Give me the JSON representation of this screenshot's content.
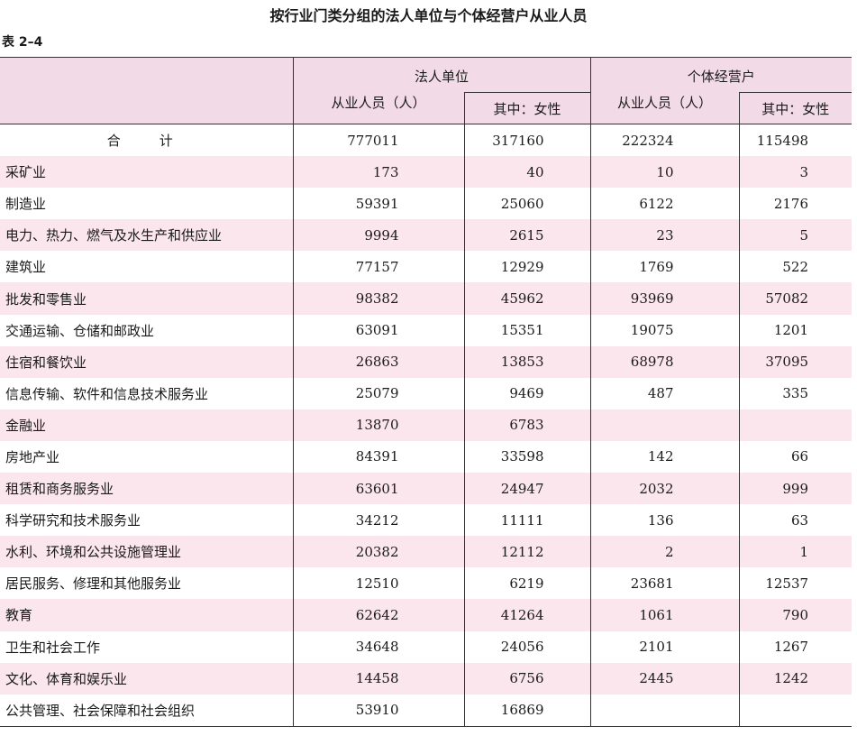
{
  "title": "按行业门类分组的法人单位与个体经营户从业人员",
  "table_label": "表 2–4",
  "header": {
    "group1": "法人单位",
    "group1_sub1": "从业人员（人）",
    "group1_sub2": "其中：女性",
    "group2": "个体经营户",
    "group2_sub1": "从业人员（人）",
    "group2_sub2": "其中：女性"
  },
  "rows": [
    {
      "name": "合　计",
      "c1": "777011",
      "c2": "317160",
      "c3": "222324",
      "c4": "115498"
    },
    {
      "name": "采矿业",
      "c1": "173",
      "c2": "40",
      "c3": "10",
      "c4": "3"
    },
    {
      "name": "制造业",
      "c1": "59391",
      "c2": "25060",
      "c3": "6122",
      "c4": "2176"
    },
    {
      "name": "电力、热力、燃气及水生产和供应业",
      "c1": "9994",
      "c2": "2615",
      "c3": "23",
      "c4": "5"
    },
    {
      "name": "建筑业",
      "c1": "77157",
      "c2": "12929",
      "c3": "1769",
      "c4": "522"
    },
    {
      "name": "批发和零售业",
      "c1": "98382",
      "c2": "45962",
      "c3": "93969",
      "c4": "57082"
    },
    {
      "name": "交通运输、仓储和邮政业",
      "c1": "63091",
      "c2": "15351",
      "c3": "19075",
      "c4": "1201"
    },
    {
      "name": "住宿和餐饮业",
      "c1": "26863",
      "c2": "13853",
      "c3": "68978",
      "c4": "37095"
    },
    {
      "name": "信息传输、软件和信息技术服务业",
      "c1": "25079",
      "c2": "9469",
      "c3": "487",
      "c4": "335"
    },
    {
      "name": "金融业",
      "c1": "13870",
      "c2": "6783",
      "c3": "",
      "c4": ""
    },
    {
      "name": "房地产业",
      "c1": "84391",
      "c2": "33598",
      "c3": "142",
      "c4": "66"
    },
    {
      "name": "租赁和商务服务业",
      "c1": "63601",
      "c2": "24947",
      "c3": "2032",
      "c4": "999"
    },
    {
      "name": "科学研究和技术服务业",
      "c1": "34212",
      "c2": "11111",
      "c3": "136",
      "c4": "63"
    },
    {
      "name": "水利、环境和公共设施管理业",
      "c1": "20382",
      "c2": "12112",
      "c3": "2",
      "c4": "1"
    },
    {
      "name": "居民服务、修理和其他服务业",
      "c1": "12510",
      "c2": "6219",
      "c3": "23681",
      "c4": "12537"
    },
    {
      "name": "教育",
      "c1": "62642",
      "c2": "41264",
      "c3": "1061",
      "c4": "790"
    },
    {
      "name": "卫生和社会工作",
      "c1": "34648",
      "c2": "24056",
      "c3": "2101",
      "c4": "1267"
    },
    {
      "name": "文化、体育和娱乐业",
      "c1": "14458",
      "c2": "6756",
      "c3": "2445",
      "c4": "1242"
    },
    {
      "name": "公共管理、社会保障和社会组织",
      "c1": "53910",
      "c2": "16869",
      "c3": "",
      "c4": ""
    }
  ]
}
